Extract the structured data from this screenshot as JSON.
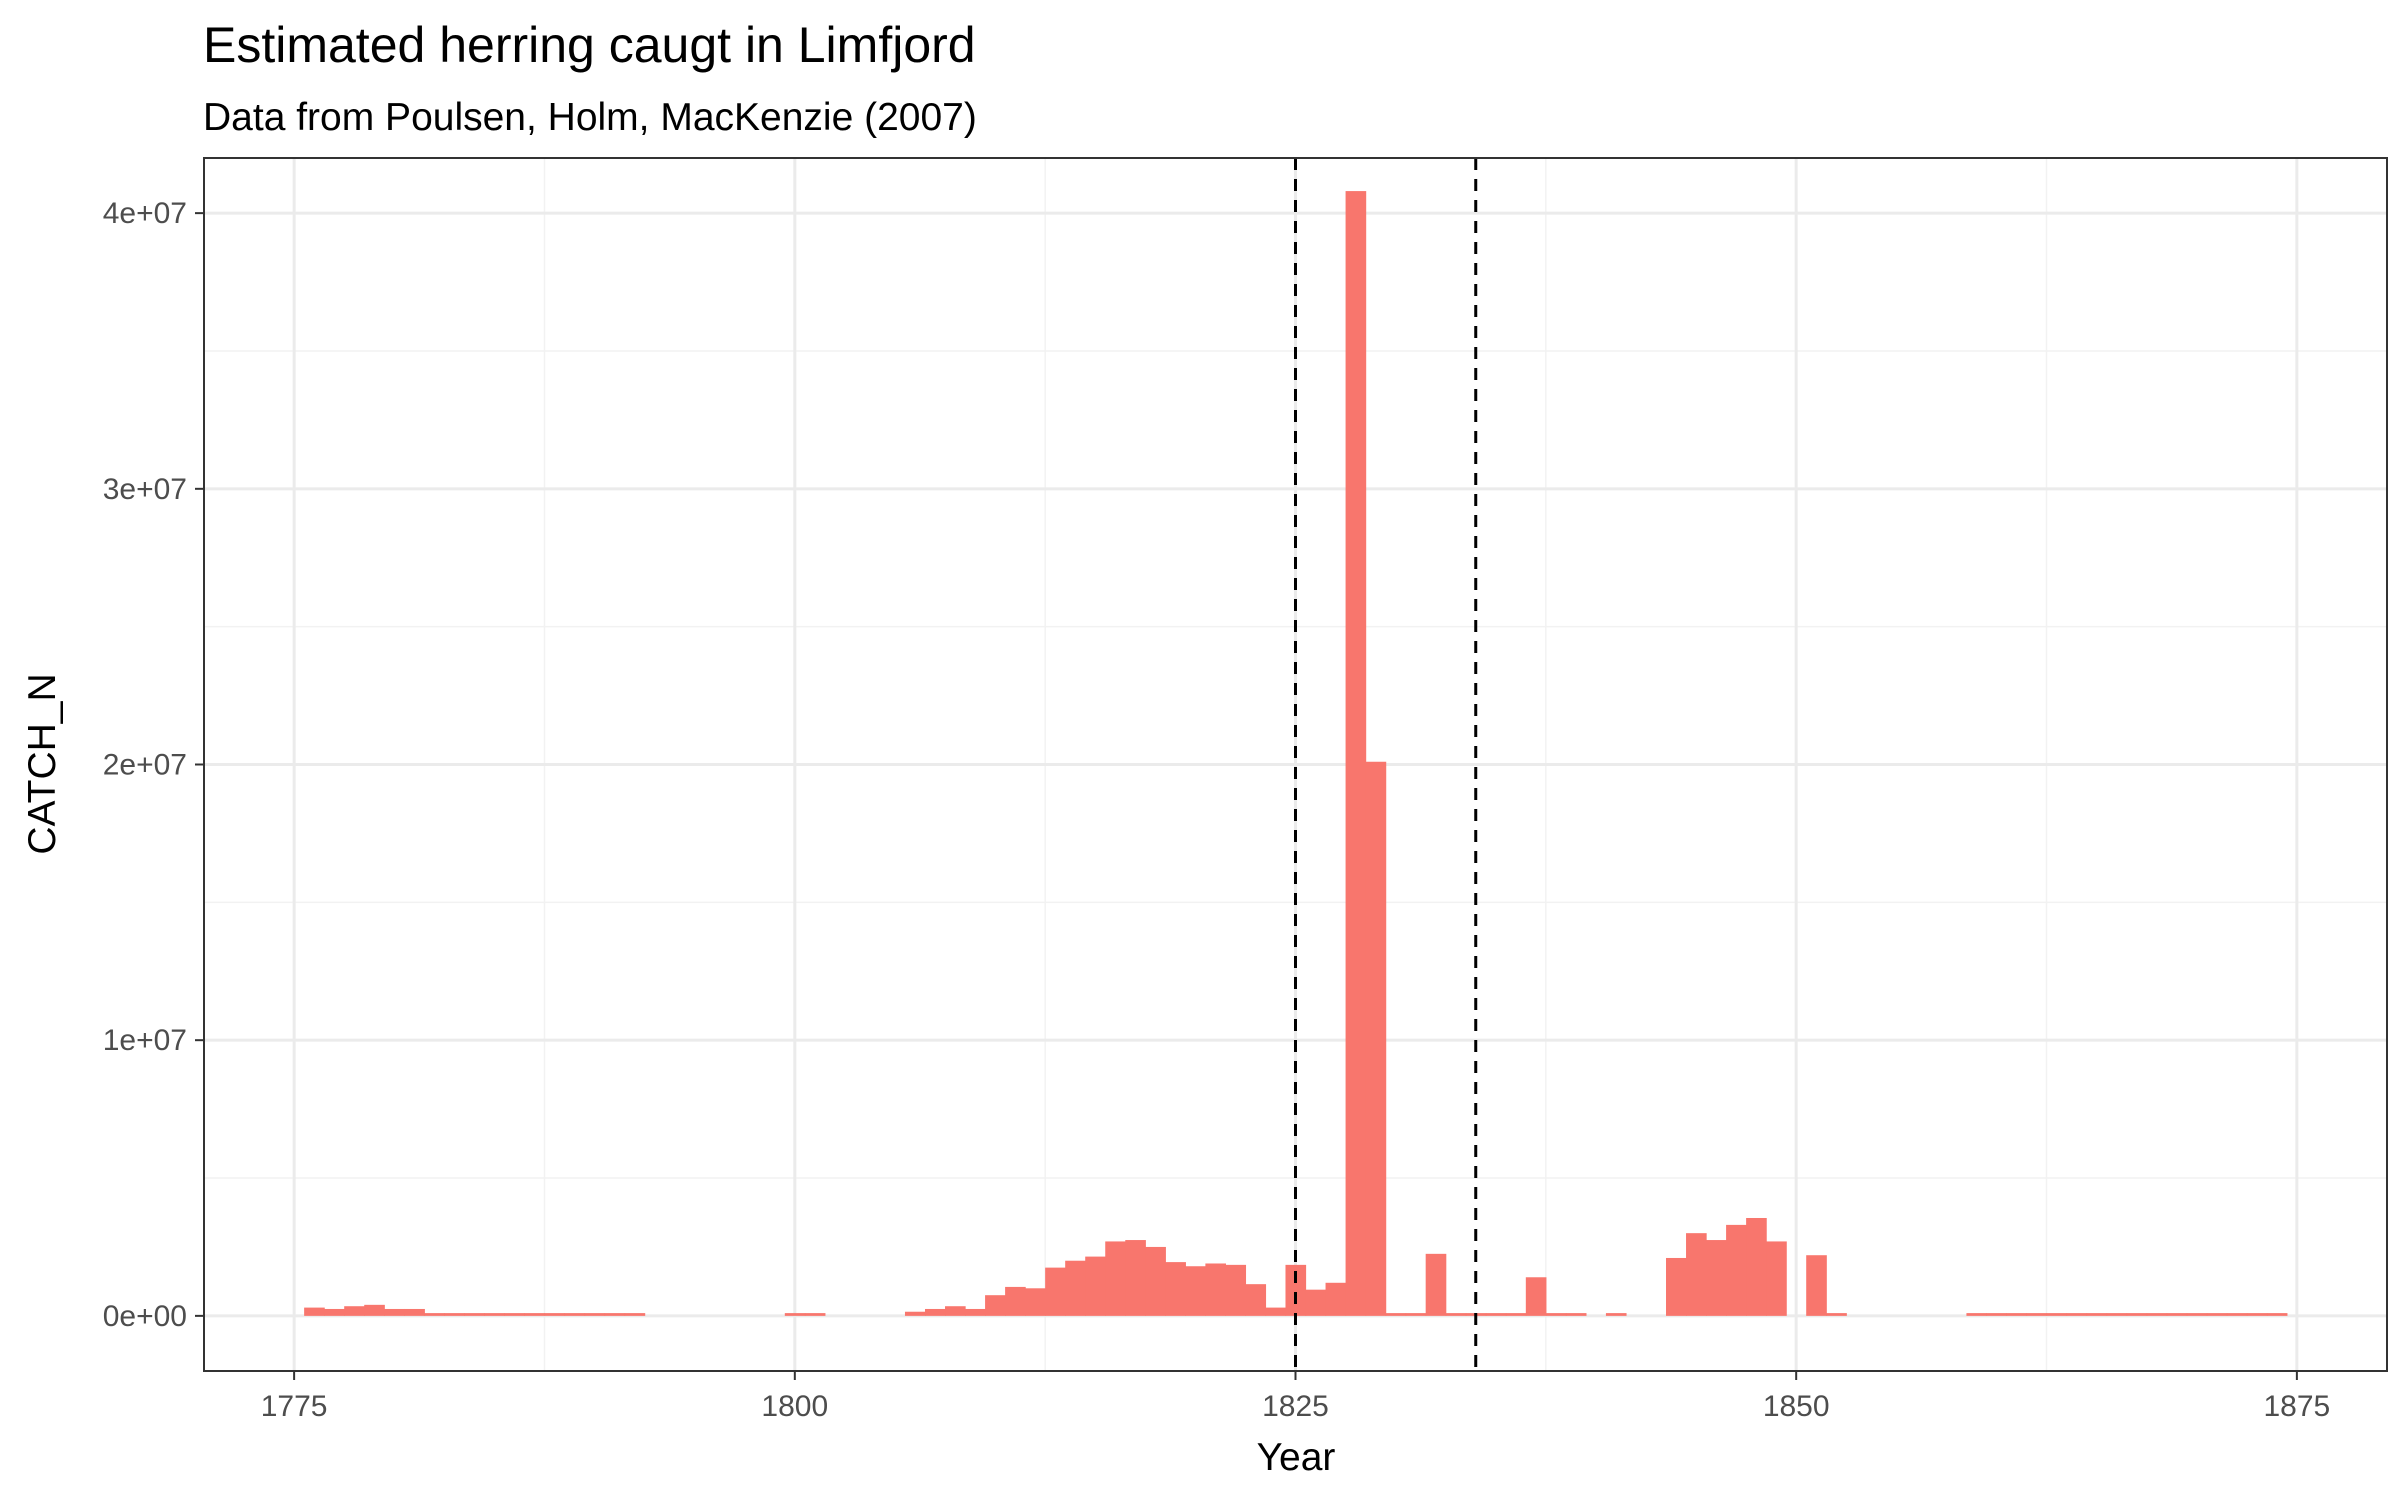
{
  "chart_data": {
    "type": "bar",
    "title": "Estimated herring caugt in Limfjord",
    "subtitle": "Data from Poulsen, Holm, MacKenzie (2007)",
    "xlabel": "Year",
    "ylabel": "CATCH_N",
    "xlim": [
      1770.5,
      1879.5
    ],
    "ylim": [
      -2000000,
      42000000
    ],
    "x_ticks": [
      1775,
      1800,
      1825,
      1850,
      1875
    ],
    "x_tick_labels": [
      "1775",
      "1800",
      "1825",
      "1850",
      "1875"
    ],
    "y_ticks": [
      0,
      10000000,
      20000000,
      30000000,
      40000000
    ],
    "y_tick_labels": [
      "0e+00",
      "1e+07",
      "2e+07",
      "3e+07",
      "4e+07"
    ],
    "grid": true,
    "bar_color": "#F8766D",
    "reference_lines": [
      1825,
      1834
    ],
    "reference_line_style": "dashed",
    "x": [
      1776,
      1777,
      1778,
      1779,
      1780,
      1781,
      1782,
      1783,
      1784,
      1785,
      1786,
      1787,
      1788,
      1789,
      1790,
      1791,
      1792,
      1800,
      1801,
      1806,
      1807,
      1808,
      1809,
      1810,
      1811,
      1812,
      1813,
      1814,
      1815,
      1816,
      1817,
      1818,
      1819,
      1820,
      1821,
      1822,
      1823,
      1824,
      1825,
      1826,
      1827,
      1828,
      1829,
      1830,
      1831,
      1832,
      1833,
      1834,
      1835,
      1836,
      1837,
      1838,
      1839,
      1841,
      1844,
      1845,
      1846,
      1847,
      1848,
      1849,
      1851,
      1852,
      1859,
      1860,
      1861,
      1862,
      1863,
      1864,
      1865,
      1866,
      1867,
      1868,
      1869,
      1870,
      1871,
      1872,
      1873,
      1874
    ],
    "values": [
      300000,
      250000,
      350000,
      400000,
      250000,
      250000,
      100000,
      100000,
      100000,
      100000,
      100000,
      100000,
      100000,
      100000,
      100000,
      100000,
      100000,
      100000,
      100000,
      150000,
      250000,
      350000,
      250000,
      750000,
      1050000,
      1000000,
      1750000,
      2000000,
      2150000,
      2700000,
      2750000,
      2500000,
      1950000,
      1800000,
      1900000,
      1850000,
      1150000,
      300000,
      1850000,
      950000,
      1200000,
      40800000,
      20100000,
      100000,
      100000,
      2250000,
      100000,
      100000,
      100000,
      100000,
      1400000,
      100000,
      100000,
      100000,
      2100000,
      3000000,
      2750000,
      3300000,
      3550000,
      2700000,
      2200000,
      100000,
      100000,
      100000,
      100000,
      100000,
      100000,
      100000,
      100000,
      100000,
      100000,
      100000,
      100000,
      100000,
      100000,
      100000,
      100000,
      100000
    ]
  }
}
